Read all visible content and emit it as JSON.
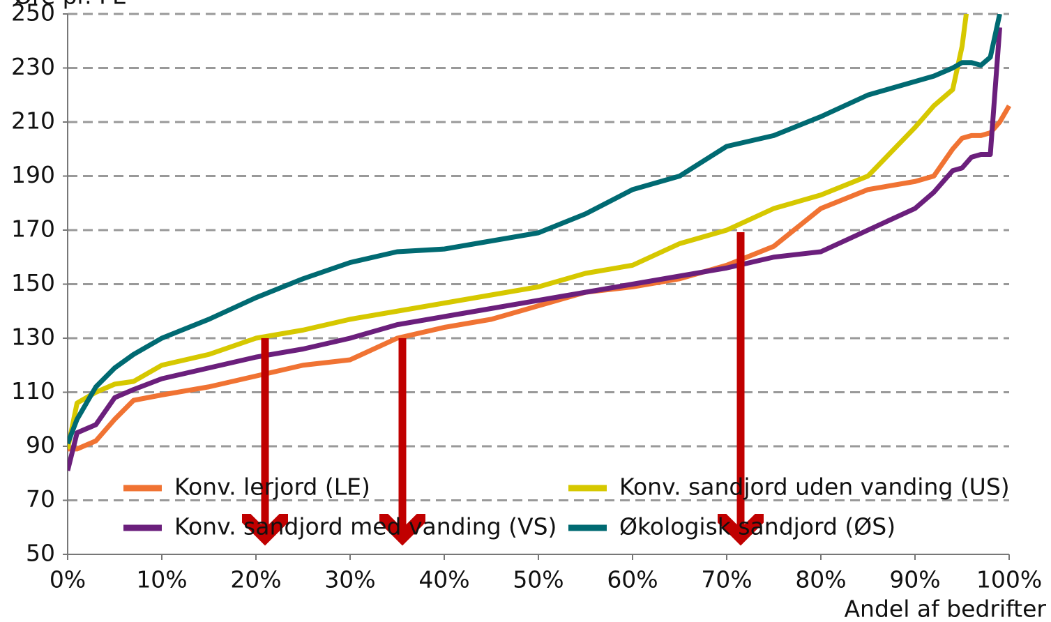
{
  "chart_data": {
    "type": "line",
    "y_label": "Øre pr. FE",
    "x_label": "Andel af bedrifter",
    "x": [
      0,
      1,
      3,
      5,
      7,
      10,
      15,
      20,
      25,
      30,
      35,
      40,
      45,
      50,
      55,
      60,
      65,
      70,
      75,
      80,
      85,
      90,
      92,
      94,
      95,
      96,
      97,
      98,
      99,
      100
    ],
    "series": [
      {
        "name": "Konv. lerjord (LE)",
        "color": "#f07333",
        "values": [
          89,
          89,
          92,
          100,
          107,
          109,
          112,
          116,
          120,
          122,
          130,
          134,
          137,
          142,
          147,
          149,
          152,
          157,
          164,
          178,
          185,
          188,
          190,
          200,
          204,
          205,
          205,
          206,
          210,
          216
        ]
      },
      {
        "name": "Konv. sandjord med vanding (VS)",
        "color": "#6b1f7c",
        "values": [
          81,
          95,
          98,
          108,
          111,
          115,
          119,
          123,
          126,
          130,
          135,
          138,
          141,
          144,
          147,
          150,
          153,
          156,
          160,
          162,
          170,
          178,
          184,
          192,
          193,
          197,
          198,
          198,
          245,
          null
        ]
      },
      {
        "name": "Konv. sandjord uden vanding (US)",
        "color": "#d6c800",
        "values": [
          89,
          106,
          110,
          113,
          114,
          120,
          124,
          130,
          133,
          137,
          140,
          143,
          146,
          149,
          154,
          157,
          165,
          170,
          178,
          183,
          190,
          208,
          216,
          222,
          238,
          265,
          null,
          null,
          null,
          null
        ]
      },
      {
        "name": "Økologisk sandjord (ØS)",
        "color": "#006a72",
        "values": [
          91,
          100,
          112,
          119,
          124,
          130,
          137,
          145,
          152,
          158,
          162,
          163,
          166,
          169,
          176,
          185,
          190,
          201,
          205,
          212,
          220,
          225,
          227,
          230,
          232,
          232,
          231,
          234,
          250,
          null
        ]
      }
    ],
    "xlim": [
      0,
      100
    ],
    "xticks": [
      {
        "value": 0,
        "label": "0%"
      },
      {
        "value": 10,
        "label": "10%"
      },
      {
        "value": 20,
        "label": "20%"
      },
      {
        "value": 30,
        "label": "30%"
      },
      {
        "value": 40,
        "label": "40%"
      },
      {
        "value": 50,
        "label": "50%"
      },
      {
        "value": 60,
        "label": "60%"
      },
      {
        "value": 70,
        "label": "70%"
      },
      {
        "value": 80,
        "label": "80%"
      },
      {
        "value": 90,
        "label": "90%"
      },
      {
        "value": 100,
        "label": "100%"
      }
    ],
    "ylim": [
      50,
      250
    ],
    "yticks": [
      50,
      70,
      90,
      110,
      130,
      150,
      170,
      190,
      210,
      230,
      250
    ],
    "grid": true
  }
}
